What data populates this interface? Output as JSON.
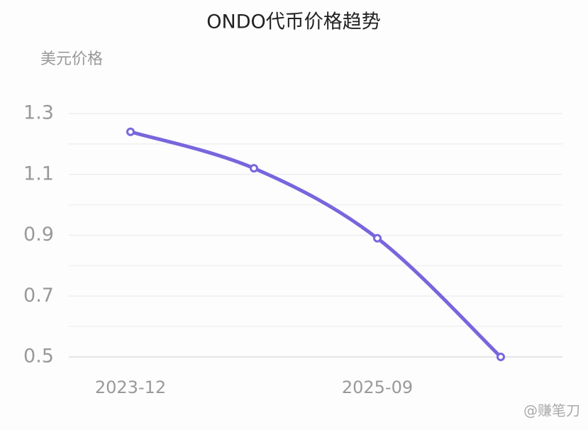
{
  "chart_data": {
    "type": "line",
    "title": "ONDO代币价格趋势",
    "y_axis_label": "美元价格",
    "categories": [
      "2023-12",
      null,
      "2025-09",
      null
    ],
    "values": [
      1.24,
      1.12,
      0.89,
      0.5
    ],
    "color": "#7766dd",
    "ylim": [
      0.5,
      1.3
    ],
    "yticks": [
      0.5,
      0.7,
      0.9,
      1.1,
      1.3
    ],
    "minor_gridlines": [
      0.6,
      0.8,
      1.0,
      1.2
    ],
    "grid": true,
    "watermark": "@赚笔刀"
  }
}
